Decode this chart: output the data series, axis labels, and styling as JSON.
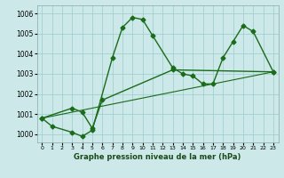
{
  "xlabel": "Graphe pression niveau de la mer (hPa)",
  "x_ticks": [
    0,
    1,
    2,
    3,
    4,
    5,
    6,
    7,
    8,
    9,
    10,
    11,
    12,
    13,
    14,
    15,
    16,
    17,
    18,
    19,
    20,
    21,
    22,
    23
  ],
  "ylim": [
    999.6,
    1006.4
  ],
  "y_ticks": [
    1000,
    1001,
    1002,
    1003,
    1004,
    1005,
    1006
  ],
  "bg_color": "#cce8e8",
  "grid_color": "#99cccc",
  "line_color": "#1a6b1a",
  "line1_x": [
    0,
    1,
    3,
    4,
    5,
    7,
    8,
    9,
    10,
    11,
    13,
    14,
    15,
    16,
    17,
    18,
    19,
    20,
    21,
    23
  ],
  "line1_y": [
    1000.8,
    1000.4,
    1000.1,
    999.9,
    1000.2,
    1003.8,
    1005.3,
    1005.8,
    1005.7,
    1004.9,
    1003.3,
    1003.0,
    1002.9,
    1002.5,
    1002.5,
    1003.8,
    1004.6,
    1005.4,
    1005.1,
    1003.1
  ],
  "line2_x": [
    0,
    3,
    4,
    5,
    6,
    13,
    23
  ],
  "line2_y": [
    1000.8,
    1001.3,
    1001.1,
    1000.3,
    1001.7,
    1003.2,
    1003.1
  ],
  "line3_x": [
    0,
    23
  ],
  "line3_y": [
    1000.8,
    1003.1
  ],
  "markersize": 2.5,
  "linewidth": 1.0
}
